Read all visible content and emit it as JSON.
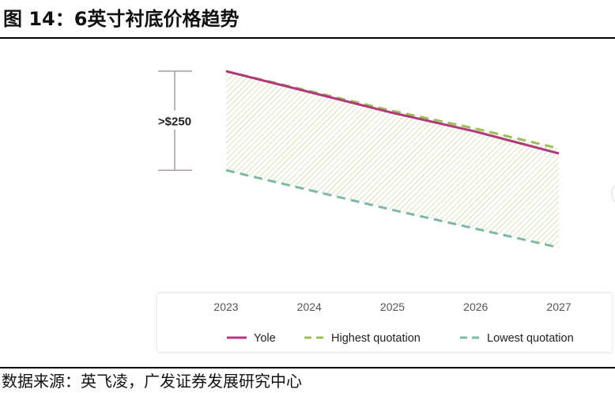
{
  "title": "图 14：6英寸衬底价格趋势",
  "source": "数据来源：英飞凌，广发证券发展研究中心",
  "chart_data": {
    "type": "line",
    "x": [
      "2023",
      "2024",
      "2025",
      "2026",
      "2027"
    ],
    "series": [
      {
        "name": "Yole",
        "values": [
          100,
          79,
          58,
          39,
          17
        ],
        "color": "#b0397a",
        "dash": "solid"
      },
      {
        "name": "Highest quotation",
        "values": [
          100,
          80,
          60,
          42,
          22
        ],
        "color": "#9cbf5a",
        "dash": "dashed"
      },
      {
        "name": "Lowest quotation",
        "values": [
          0,
          -20,
          -40,
          -59,
          -78
        ],
        "color": "#7fb8a8",
        "dash": "dashed"
      }
    ],
    "shaded_band": {
      "between": [
        "Highest quotation",
        "Lowest quotation"
      ],
      "color": "#9cbf5a",
      "pattern": "diagonal-hatch"
    },
    "annotation": {
      "label": ">$250",
      "range": [
        0,
        100
      ]
    },
    "ylim": [
      -100,
      120
    ],
    "grid": false,
    "legend": "bottom",
    "xlabel": "",
    "ylabel": ""
  }
}
